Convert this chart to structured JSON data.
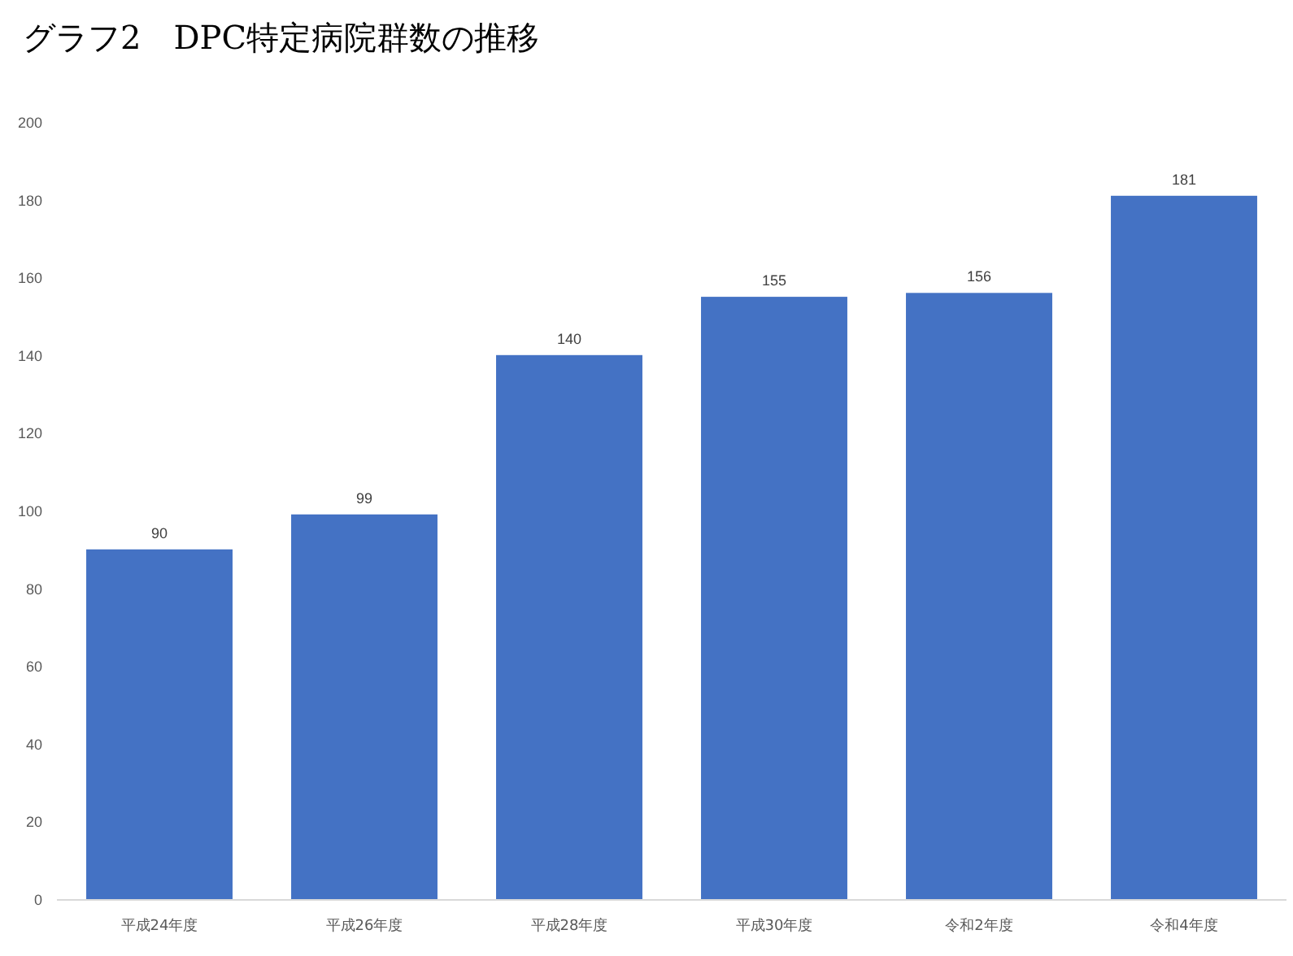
{
  "chart_data": {
    "type": "bar",
    "title": "グラフ2　DPC特定病院群数の推移",
    "categories": [
      "平成24年度",
      "平成26年度",
      "平成28年度",
      "平成30年度",
      "令和2年度",
      "令和4年度"
    ],
    "values": [
      90,
      99,
      140,
      155,
      156,
      181
    ],
    "color": "#4472c4",
    "ylim": [
      0,
      200
    ],
    "yticks": [
      0,
      20,
      40,
      60,
      80,
      100,
      120,
      140,
      160,
      180,
      200
    ],
    "data_labels": true
  }
}
